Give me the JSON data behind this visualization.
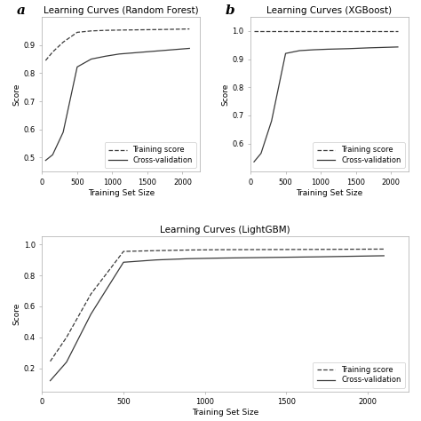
{
  "panel_a": {
    "title": "Learning Curves (Random Forest)",
    "xlabel": "Training Set Size",
    "ylabel": "Score",
    "xlim": [
      0,
      2250
    ],
    "ylim": [
      0.45,
      1.0
    ],
    "yticks": [
      0.5,
      0.6,
      0.7,
      0.8,
      0.9
    ],
    "xticks": [
      0,
      500,
      1000,
      1500,
      2000
    ],
    "train_x": [
      50,
      150,
      300,
      500,
      700,
      900,
      1100,
      1400,
      1700,
      2100
    ],
    "train_y": [
      0.845,
      0.875,
      0.91,
      0.945,
      0.95,
      0.952,
      0.953,
      0.954,
      0.955,
      0.957
    ],
    "cv_x": [
      50,
      150,
      300,
      500,
      700,
      900,
      1100,
      1400,
      1700,
      2100
    ],
    "cv_y": [
      0.49,
      0.51,
      0.59,
      0.822,
      0.85,
      0.86,
      0.868,
      0.874,
      0.88,
      0.888
    ]
  },
  "panel_b": {
    "title": "Learning Curves (XGBoost)",
    "xlabel": "Training Set Size",
    "ylabel": "Score",
    "xlim": [
      0,
      2250
    ],
    "ylim": [
      0.5,
      1.05
    ],
    "yticks": [
      0.6,
      0.7,
      0.8,
      0.9,
      1.0
    ],
    "xticks": [
      0,
      500,
      1000,
      1500,
      2000
    ],
    "train_x": [
      50,
      150,
      300,
      500,
      700,
      900,
      1100,
      1400,
      1700,
      2100
    ],
    "train_y": [
      1.0,
      1.0,
      1.0,
      1.0,
      1.0,
      1.0,
      1.0,
      1.0,
      1.0,
      1.0
    ],
    "cv_x": [
      50,
      150,
      300,
      500,
      700,
      900,
      1100,
      1400,
      1700,
      2100
    ],
    "cv_y": [
      0.535,
      0.565,
      0.68,
      0.92,
      0.93,
      0.933,
      0.935,
      0.937,
      0.94,
      0.943
    ]
  },
  "panel_c": {
    "title": "Learning Curves (LightGBM)",
    "xlabel": "Training Set Size",
    "ylabel": "Score",
    "xlim": [
      0,
      2250
    ],
    "ylim": [
      0.05,
      1.05
    ],
    "yticks": [
      0.2,
      0.4,
      0.6,
      0.8,
      1.0
    ],
    "xticks": [
      0,
      500,
      1000,
      1500,
      2000
    ],
    "train_x": [
      50,
      150,
      300,
      500,
      700,
      900,
      1100,
      1400,
      1700,
      2100
    ],
    "train_y": [
      0.245,
      0.4,
      0.68,
      0.955,
      0.96,
      0.964,
      0.966,
      0.967,
      0.968,
      0.97
    ],
    "cv_x": [
      50,
      150,
      300,
      500,
      700,
      900,
      1100,
      1400,
      1700,
      2100
    ],
    "cv_y": [
      0.12,
      0.24,
      0.55,
      0.885,
      0.9,
      0.908,
      0.912,
      0.916,
      0.92,
      0.927
    ]
  },
  "line_color": "#3a3a3a",
  "bg_color": "#ffffff",
  "legend_train_label": "Training score",
  "legend_cv_label": "Cross-validation",
  "label_fontsize": 6.5,
  "title_fontsize": 7.5,
  "tick_fontsize": 6,
  "legend_fontsize": 6,
  "panel_label_fontsize": 11
}
